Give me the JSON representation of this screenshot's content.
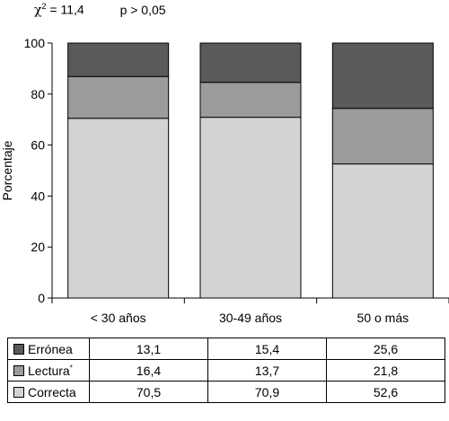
{
  "header": {
    "chi_symbol": "χ",
    "chi_exp": "2",
    "chi_value": "= 11,4",
    "p_text": "p > 0,05"
  },
  "chart_data": {
    "type": "bar",
    "stacked": true,
    "ylabel": "Porcentaje",
    "ylim": [
      0,
      100
    ],
    "yticks": [
      "0",
      "20",
      "40",
      "60",
      "80",
      "100"
    ],
    "categories": [
      "< 30 años",
      "30-49 años",
      "50 o más"
    ],
    "series": [
      {
        "name": "Correcta",
        "color": "#d3d3d3",
        "values": [
          70.5,
          70.9,
          52.6
        ],
        "labels": [
          "70,5",
          "70,9",
          "52,6"
        ]
      },
      {
        "name": "Lectura",
        "name_mark": "*",
        "color": "#9b9b9b",
        "values": [
          16.4,
          13.7,
          21.8
        ],
        "labels": [
          "16,4",
          "13,7",
          "21,8"
        ]
      },
      {
        "name": "Errónea",
        "color": "#5a5a5a",
        "values": [
          13.1,
          15.4,
          25.6
        ],
        "labels": [
          "13,1",
          "15,4",
          "25,6"
        ]
      }
    ],
    "table_order": [
      2,
      1,
      0
    ],
    "grid": false
  }
}
